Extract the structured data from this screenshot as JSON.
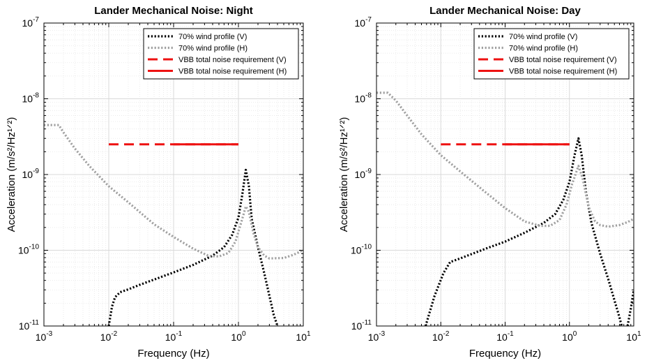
{
  "chart_data": [
    {
      "type": "line",
      "title": "Lander Mechanical Noise: Night",
      "xlabel": "Frequency (Hz)",
      "ylabel": "Acceleration (m/s²/Hz¹ᐟ²)",
      "xscale": "log",
      "yscale": "log",
      "xlim": [
        0.001,
        10
      ],
      "ylim": [
        1e-11,
        1e-07
      ],
      "grid": true,
      "legend_position": "top-right",
      "x_ticks": [
        {
          "value": 0.001,
          "label": "10",
          "exp": "-3"
        },
        {
          "value": 0.01,
          "label": "10",
          "exp": "-2"
        },
        {
          "value": 0.1,
          "label": "10",
          "exp": "-1"
        },
        {
          "value": 1,
          "label": "10",
          "exp": "0"
        },
        {
          "value": 10,
          "label": "10",
          "exp": "1"
        }
      ],
      "y_ticks": [
        {
          "value": 1e-11,
          "label": "10",
          "exp": "-11"
        },
        {
          "value": 1e-10,
          "label": "10",
          "exp": "-10"
        },
        {
          "value": 1e-09,
          "label": "10",
          "exp": "-9"
        },
        {
          "value": 1e-08,
          "label": "10",
          "exp": "-8"
        },
        {
          "value": 1e-07,
          "label": "10",
          "exp": "-7"
        }
      ],
      "series": [
        {
          "name": "70% wind profile (V)",
          "color": "#000000",
          "style": "dotted",
          "points": [
            [
              0.01,
              1e-11
            ],
            [
              0.0112,
              1.8e-11
            ],
            [
              0.0125,
              2.4e-11
            ],
            [
              0.015,
              2.8e-11
            ],
            [
              0.02,
              3.05e-11
            ],
            [
              0.03,
              3.5e-11
            ],
            [
              0.05,
              4.1e-11
            ],
            [
              0.1,
              5.1e-11
            ],
            [
              0.2,
              6.4e-11
            ],
            [
              0.4,
              8.5e-11
            ],
            [
              0.6,
              1.1e-10
            ],
            [
              0.8,
              1.6e-10
            ],
            [
              1.0,
              2.7e-10
            ],
            [
              1.15,
              5.5e-10
            ],
            [
              1.3,
              1.15e-09
            ],
            [
              1.45,
              7e-10
            ],
            [
              1.6,
              2.6e-10
            ],
            [
              2.0,
              1.1e-10
            ],
            [
              2.5,
              5e-11
            ],
            [
              3.0,
              2.5e-11
            ],
            [
              3.5,
              1.4e-11
            ],
            [
              4.0,
              1e-11
            ]
          ]
        },
        {
          "name": "70% wind profile (H)",
          "color": "#a0a0a0",
          "style": "dotted",
          "points": [
            [
              0.001,
              4.5e-09
            ],
            [
              0.0017,
              4.5e-09
            ],
            [
              0.002,
              3.6e-09
            ],
            [
              0.003,
              2.2e-09
            ],
            [
              0.005,
              1.3e-09
            ],
            [
              0.01,
              7e-10
            ],
            [
              0.02,
              4.3e-10
            ],
            [
              0.05,
              2.2e-10
            ],
            [
              0.1,
              1.5e-10
            ],
            [
              0.2,
              1.05e-10
            ],
            [
              0.35,
              8.4e-11
            ],
            [
              0.5,
              8.3e-11
            ],
            [
              0.7,
              9.2e-11
            ],
            [
              0.9,
              1.3e-10
            ],
            [
              1.1,
              2.3e-10
            ],
            [
              1.3,
              3.8e-10
            ],
            [
              1.45,
              3.2e-10
            ],
            [
              1.7,
              1.7e-10
            ],
            [
              2.0,
              1.1e-10
            ],
            [
              2.5,
              8.5e-11
            ],
            [
              3.0,
              7.8e-11
            ],
            [
              5.0,
              7.9e-11
            ],
            [
              7.0,
              8.7e-11
            ],
            [
              10,
              1e-10
            ]
          ]
        },
        {
          "name": "VBB total noise requirement (V)",
          "color": "#ee1111",
          "style": "dashed",
          "points": [
            [
              0.01,
              2.5e-09
            ],
            [
              1,
              2.5e-09
            ]
          ]
        },
        {
          "name": "VBB total noise requirement (H)",
          "color": "#ee1111",
          "style": "solid",
          "points": [
            [
              0.1,
              2.5e-09
            ],
            [
              1,
              2.5e-09
            ]
          ]
        }
      ]
    },
    {
      "type": "line",
      "title": "Lander Mechanical Noise: Day",
      "xlabel": "Frequency (Hz)",
      "ylabel": "Acceleration (m/s²/Hz¹ᐟ²)",
      "xscale": "log",
      "yscale": "log",
      "xlim": [
        0.001,
        10
      ],
      "ylim": [
        1e-11,
        1e-07
      ],
      "grid": true,
      "legend_position": "top-right",
      "x_ticks": [
        {
          "value": 0.001,
          "label": "10",
          "exp": "-3"
        },
        {
          "value": 0.01,
          "label": "10",
          "exp": "-2"
        },
        {
          "value": 0.1,
          "label": "10",
          "exp": "-1"
        },
        {
          "value": 1,
          "label": "10",
          "exp": "0"
        },
        {
          "value": 10,
          "label": "10",
          "exp": "1"
        }
      ],
      "y_ticks": [
        {
          "value": 1e-11,
          "label": "10",
          "exp": "-11"
        },
        {
          "value": 1e-10,
          "label": "10",
          "exp": "-10"
        },
        {
          "value": 1e-09,
          "label": "10",
          "exp": "-9"
        },
        {
          "value": 1e-08,
          "label": "10",
          "exp": "-8"
        },
        {
          "value": 1e-07,
          "label": "10",
          "exp": "-7"
        }
      ],
      "series": [
        {
          "name": "70% wind profile (V)",
          "color": "#000000",
          "style": "dotted",
          "points": [
            [
              0.0058,
              1e-11
            ],
            [
              0.008,
              2.5e-11
            ],
            [
              0.011,
              5e-11
            ],
            [
              0.014,
              7e-11
            ],
            [
              0.02,
              7.8e-11
            ],
            [
              0.05,
              1.05e-10
            ],
            [
              0.1,
              1.3e-10
            ],
            [
              0.2,
              1.7e-10
            ],
            [
              0.4,
              2.3e-10
            ],
            [
              0.6,
              3e-10
            ],
            [
              0.8,
              4.6e-10
            ],
            [
              1.0,
              8e-10
            ],
            [
              1.2,
              1.8e-09
            ],
            [
              1.38,
              3e-09
            ],
            [
              1.55,
              1.8e-09
            ],
            [
              1.8,
              6e-10
            ],
            [
              2.2,
              2.3e-10
            ],
            [
              3.0,
              9e-11
            ],
            [
              4.0,
              4.2e-11
            ],
            [
              5.0,
              2.2e-11
            ],
            [
              6.0,
              1.3e-11
            ],
            [
              6.5,
              1e-11
            ]
          ]
        },
        {
          "name": "70% wind profile (V)",
          "color": "#000000",
          "style": "dotted",
          "points": [
            [
              8.0,
              1e-11
            ],
            [
              9.0,
              1.7e-11
            ],
            [
              10,
              3e-11
            ]
          ]
        },
        {
          "name": "70% wind profile (H)",
          "color": "#a0a0a0",
          "style": "dotted",
          "points": [
            [
              0.001,
              1.2e-08
            ],
            [
              0.0015,
              1.2e-08
            ],
            [
              0.002,
              9.5e-09
            ],
            [
              0.003,
              6e-09
            ],
            [
              0.005,
              3.4e-09
            ],
            [
              0.01,
              1.8e-09
            ],
            [
              0.02,
              1.1e-09
            ],
            [
              0.05,
              5.8e-10
            ],
            [
              0.1,
              3.6e-10
            ],
            [
              0.2,
              2.4e-10
            ],
            [
              0.35,
              2.1e-10
            ],
            [
              0.5,
              2.1e-10
            ],
            [
              0.7,
              2.5e-10
            ],
            [
              0.9,
              4e-10
            ],
            [
              1.1,
              7.5e-10
            ],
            [
              1.38,
              1.3e-09
            ],
            [
              1.6,
              9e-10
            ],
            [
              2.0,
              3.7e-10
            ],
            [
              2.5,
              2.4e-10
            ],
            [
              3.0,
              2.15e-10
            ],
            [
              4.0,
              2.05e-10
            ],
            [
              6.0,
              2.15e-10
            ],
            [
              8.0,
              2.35e-10
            ],
            [
              10,
              2.6e-10
            ]
          ]
        },
        {
          "name": "VBB total noise requirement (V)",
          "color": "#ee1111",
          "style": "dashed",
          "points": [
            [
              0.01,
              2.5e-09
            ],
            [
              1,
              2.5e-09
            ]
          ]
        },
        {
          "name": "VBB total noise requirement (H)",
          "color": "#ee1111",
          "style": "solid",
          "points": [
            [
              0.1,
              2.5e-09
            ],
            [
              1,
              2.5e-09
            ]
          ]
        }
      ]
    }
  ]
}
